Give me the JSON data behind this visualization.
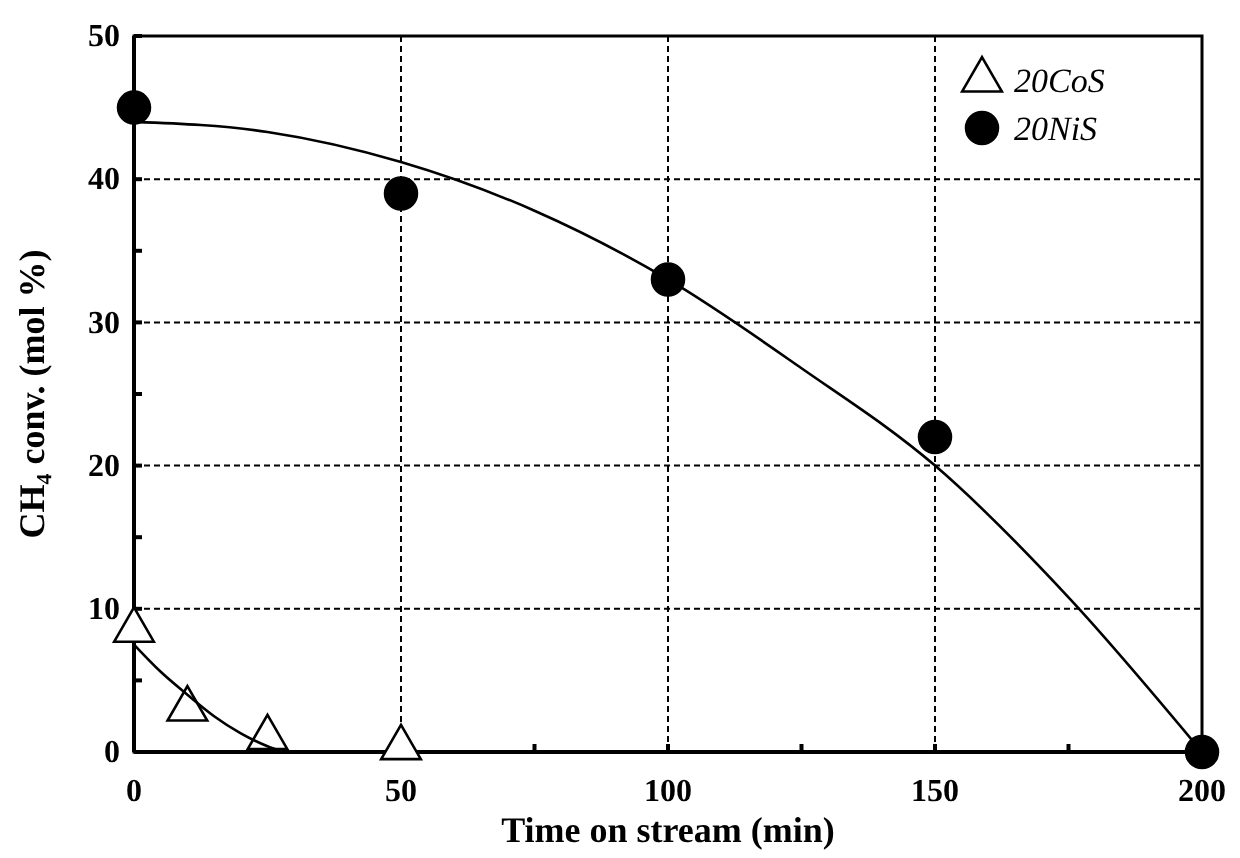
{
  "chart_data": {
    "type": "scatter",
    "xlabel": "Time on stream (min)",
    "ylabel": "CH₄ conv. (mol %)",
    "xlim": [
      0,
      200
    ],
    "ylim": [
      0,
      50
    ],
    "xticks": [
      0,
      {
        "value": 25,
        "label": null
      },
      50,
      {
        "value": 75,
        "label": null
      },
      100,
      {
        "value": 125,
        "label": null
      },
      150,
      {
        "value": 175,
        "label": null
      },
      200
    ],
    "yticks": [
      0,
      {
        "value": 5,
        "label": null
      },
      10,
      {
        "value": 15,
        "label": null
      },
      20,
      {
        "value": 25,
        "label": null
      },
      30,
      {
        "value": 35,
        "label": null
      },
      40,
      {
        "value": 45,
        "label": null
      },
      50
    ],
    "grid": true,
    "legend": "top right",
    "line_style": "dashed",
    "series": [
      {
        "name": "20CoS",
        "marker": "triangle",
        "color": "#000000",
        "x": [
          0,
          10,
          25,
          50
        ],
        "values": [
          8.5,
          3,
          1,
          0.3
        ]
      },
      {
        "name": "20NiS",
        "marker": "circle",
        "color": "#000000",
        "x": [
          0,
          50,
          100,
          150,
          200
        ],
        "values": [
          45,
          39,
          33,
          22,
          0
        ]
      },
      {
        "type": "line",
        "line_style": "solid",
        "color": "#000000",
        "x": [
          0,
          5,
          10,
          15,
          20,
          25,
          28
        ],
        "values": [
          7.5,
          5.6,
          4,
          2.5,
          1.3,
          0.4,
          0
        ]
      },
      {
        "type": "line",
        "line_style": "solid",
        "color": "#000000",
        "x": [
          0,
          25,
          50,
          75,
          100,
          125,
          150,
          175,
          200
        ],
        "values": [
          44,
          43.3,
          41.2,
          37.8,
          33,
          26.8,
          20,
          10.8,
          0
        ]
      }
    ]
  }
}
